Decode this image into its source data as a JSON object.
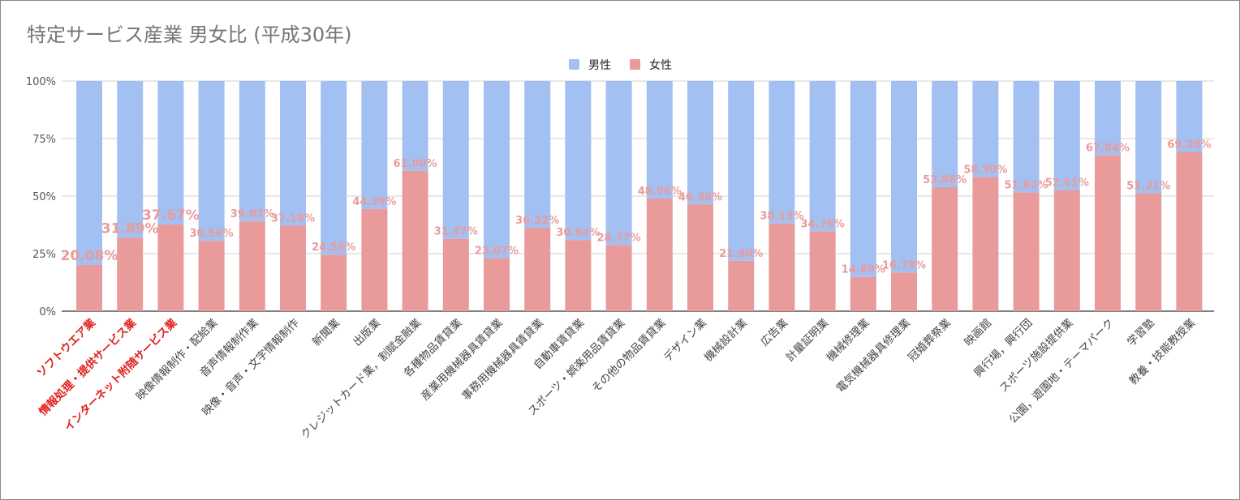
{
  "chart_data": {
    "type": "bar",
    "stacked": "percent",
    "title": "特定サービス産業 男女比 (平成30年)",
    "xlabel": "",
    "ylabel": "",
    "ylim": [
      0,
      100
    ],
    "ytick_labels": [
      "0%",
      "25%",
      "50%",
      "75%",
      "100%"
    ],
    "ytick_values": [
      0,
      25,
      50,
      75,
      100
    ],
    "legend_position": "top",
    "grid": true,
    "highlight_color": "#e0201c",
    "categories": [
      "ソフトウエア業",
      "情報処理・提供サービス業",
      "インターネット附随サービス業",
      "映像情報制作・配給業",
      "音声情報制作業",
      "映像・音声・文字情報制作",
      "新聞業",
      "出版業",
      "クレジットカード業，割賦金融業",
      "各種物品賃貸業",
      "産業用機械器具賃貸業",
      "事務用機械器具賃貸業",
      "自動車賃貸業",
      "スポーツ・娯楽用品賃貸業",
      "その他の物品賃貸業",
      "デザイン業",
      "機械設計業",
      "広告業",
      "計量証明業",
      "機械修理業",
      "電気機械器具修理業",
      "冠婚葬祭業",
      "映画館",
      "興行場，興行団",
      "スポーツ施設提供業",
      "公園，遊園地・テーマパーク",
      "学習塾",
      "教養・技能教授業"
    ],
    "highlighted_categories": [
      0,
      1,
      2
    ],
    "series": [
      {
        "name": "男性",
        "color": "#a3c0f3",
        "values": [
          79.92,
          68.11,
          62.33,
          69.44,
          60.97,
          62.82,
          75.44,
          55.61,
          39.0,
          68.53,
          76.93,
          63.68,
          69.06,
          71.23,
          51.04,
          53.64,
          78.1,
          61.87,
          65.24,
          85.11,
          83.21,
          46.12,
          41.7,
          48.38,
          47.39,
          32.16,
          48.79,
          30.8
        ]
      },
      {
        "name": "女性",
        "color": "#e99b9b",
        "values": [
          20.08,
          31.89,
          37.67,
          30.56,
          39.03,
          37.18,
          24.56,
          44.39,
          61.0,
          31.47,
          23.07,
          36.32,
          30.94,
          28.77,
          48.96,
          46.36,
          21.9,
          38.13,
          34.76,
          14.89,
          16.79,
          53.88,
          58.3,
          51.62,
          52.61,
          67.84,
          51.21,
          69.2
        ]
      }
    ],
    "data_labels": [
      "20.08%",
      "31.89%",
      "37.67%",
      "30.56%",
      "39.03%",
      "37.18%",
      "24.56%",
      "44.39%",
      "61.00%",
      "31.47%",
      "23.07%",
      "36.32%",
      "30.94%",
      "28.77%",
      "48.96%",
      "46.36%",
      "21.90%",
      "38.13%",
      "34.76%",
      "14.89%",
      "16.79%",
      "53.88%",
      "58.30%",
      "51.62%",
      "52.61%",
      "67.84%",
      "51.21%",
      "69.20%"
    ],
    "data_label_color": "#e99b9b"
  }
}
